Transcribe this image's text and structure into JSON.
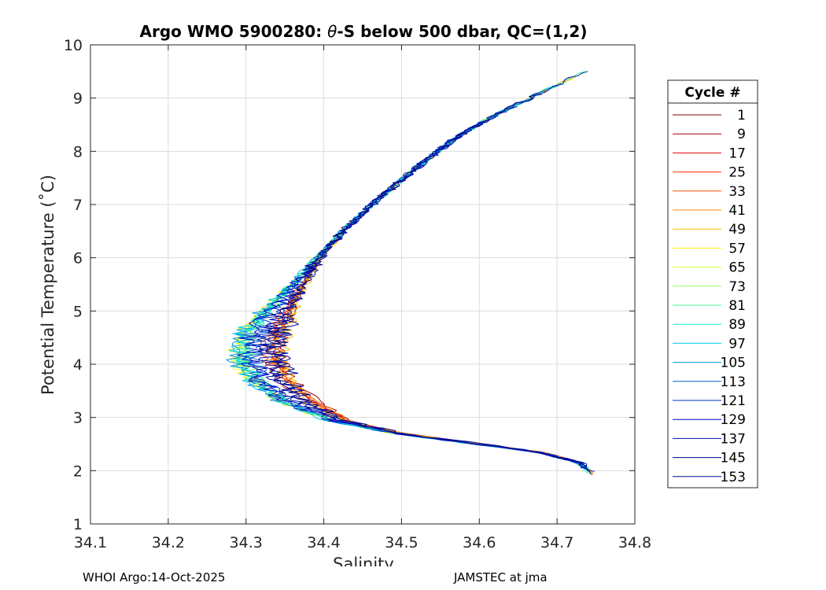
{
  "chart_data": {
    "type": "line",
    "title_prefix": "Argo WMO 5900280: ",
    "title_theta": "θ",
    "title_suffix": "-S below 500 dbar,  QC=(1,2)",
    "xlabel": "Salinity",
    "ylabel": "Potential Temperature (˚C)",
    "xlim": [
      34.1,
      34.8
    ],
    "ylim": [
      1,
      10
    ],
    "x_ticks": [
      "34.1",
      "34.2",
      "34.3",
      "34.4",
      "34.5",
      "34.6",
      "34.7",
      "34.8"
    ],
    "y_ticks": [
      "1",
      "2",
      "3",
      "4",
      "5",
      "6",
      "7",
      "8",
      "9",
      "10"
    ],
    "grid": true,
    "legend_title": "Cycle #",
    "legend_position": "right-outside",
    "series": [
      {
        "name": "1",
        "color": "#800000"
      },
      {
        "name": "9",
        "color": "#a30000"
      },
      {
        "name": "17",
        "color": "#e60000"
      },
      {
        "name": "25",
        "color": "#ff2a00"
      },
      {
        "name": "33",
        "color": "#ff5500"
      },
      {
        "name": "41",
        "color": "#ff8800"
      },
      {
        "name": "49",
        "color": "#ffbb00"
      },
      {
        "name": "57",
        "color": "#ffee00"
      },
      {
        "name": "65",
        "color": "#ccff33"
      },
      {
        "name": "73",
        "color": "#88ff66"
      },
      {
        "name": "81",
        "color": "#44ff99"
      },
      {
        "name": "89",
        "color": "#11eecc"
      },
      {
        "name": "97",
        "color": "#00ccee"
      },
      {
        "name": "105",
        "color": "#0099dd"
      },
      {
        "name": "113",
        "color": "#0066cc"
      },
      {
        "name": "121",
        "color": "#0033cc"
      },
      {
        "name": "129",
        "color": "#0000cc"
      },
      {
        "name": "137",
        "color": "#0011aa"
      },
      {
        "name": "145",
        "color": "#000088"
      },
      {
        "name": "153",
        "color": "#001199"
      }
    ],
    "envelope_profile": [
      {
        "s": 34.745,
        "t": 1.95
      },
      {
        "s": 34.73,
        "t": 2.15
      },
      {
        "s": 34.68,
        "t": 2.35
      },
      {
        "s": 34.6,
        "t": 2.5
      },
      {
        "s": 34.5,
        "t": 2.7
      },
      {
        "s": 34.42,
        "t": 2.95
      },
      {
        "s": 34.37,
        "t": 3.3
      },
      {
        "s": 34.345,
        "t": 3.7
      },
      {
        "s": 34.335,
        "t": 4.1
      },
      {
        "s": 34.338,
        "t": 4.6
      },
      {
        "s": 34.36,
        "t": 5.2
      },
      {
        "s": 34.39,
        "t": 5.9
      },
      {
        "s": 34.425,
        "t": 6.5
      },
      {
        "s": 34.47,
        "t": 7.1
      },
      {
        "s": 34.52,
        "t": 7.7
      },
      {
        "s": 34.565,
        "t": 8.2
      },
      {
        "s": 34.61,
        "t": 8.6
      },
      {
        "s": 34.665,
        "t": 9.0
      },
      {
        "s": 34.75,
        "t": 9.6
      }
    ]
  },
  "footer": {
    "left": "WHOI Argo:14-Oct-2025",
    "right": "JAMSTEC at jma"
  }
}
